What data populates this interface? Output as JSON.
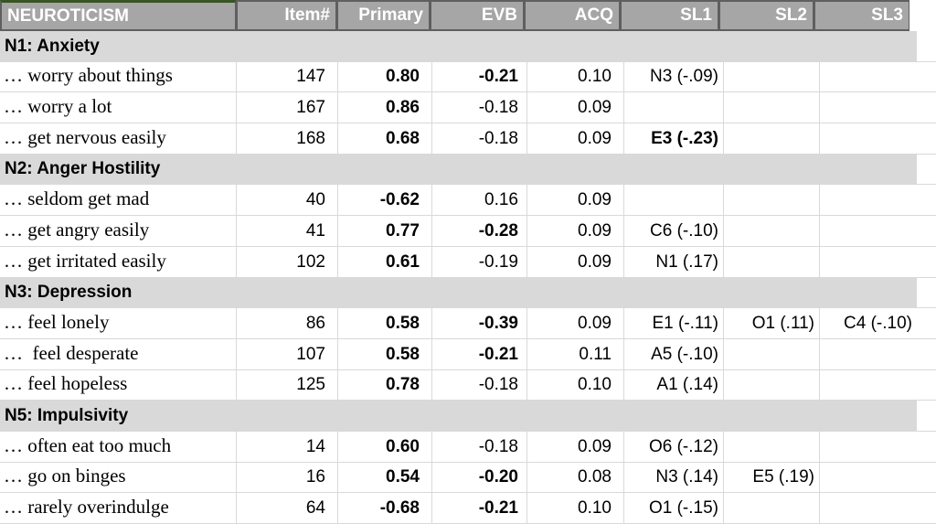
{
  "colors": {
    "header_bg": "#A6A6A6",
    "header_text": "#FFFFFF",
    "header_border": "#5F5F5F",
    "accent_green": "#375623",
    "section_bg": "#D9D9D9",
    "gridline": "#D9D9D9"
  },
  "table": {
    "headers": [
      "NEUROTICISM",
      "Item#",
      "Primary",
      "EVB",
      "ACQ",
      "SL1",
      "SL2",
      "SL3"
    ],
    "sections": [
      {
        "title": "N1: Anxiety",
        "items": [
          {
            "label": "… worry about things",
            "item": "147",
            "primary": "0.80",
            "evb": "-0.21",
            "acq": "0.10",
            "sl1": "N3 (-.09)",
            "sl2": "",
            "sl3": "",
            "evb_bold": true,
            "sl1_bold": false
          },
          {
            "label": "… worry a lot",
            "item": "167",
            "primary": "0.86",
            "evb": "-0.18",
            "acq": "0.09",
            "sl1": "",
            "sl2": "",
            "sl3": "",
            "evb_bold": false,
            "sl1_bold": false
          },
          {
            "label": "… get nervous easily",
            "item": "168",
            "primary": "0.68",
            "evb": "-0.18",
            "acq": "0.09",
            "sl1": "E3 (-.23)",
            "sl2": "",
            "sl3": "",
            "evb_bold": false,
            "sl1_bold": true
          }
        ]
      },
      {
        "title": "N2: Anger Hostility",
        "items": [
          {
            "label": "… seldom get mad",
            "item": "40",
            "primary": "-0.62",
            "evb": "0.16",
            "acq": "0.09",
            "sl1": "",
            "sl2": "",
            "sl3": "",
            "evb_bold": false,
            "sl1_bold": false
          },
          {
            "label": "… get angry easily",
            "item": "41",
            "primary": "0.77",
            "evb": "-0.28",
            "acq": "0.09",
            "sl1": "C6 (-.10)",
            "sl2": "",
            "sl3": "",
            "evb_bold": true,
            "sl1_bold": false
          },
          {
            "label": "… get irritated easily",
            "item": "102",
            "primary": "0.61",
            "evb": "-0.19",
            "acq": "0.09",
            "sl1": "N1 (.17)",
            "sl2": "",
            "sl3": "",
            "evb_bold": false,
            "sl1_bold": false
          }
        ]
      },
      {
        "title": "N3: Depression",
        "items": [
          {
            "label": "… feel lonely",
            "item": "86",
            "primary": "0.58",
            "evb": "-0.39",
            "acq": "0.09",
            "sl1": "E1 (-.11)",
            "sl2": "O1 (.11)",
            "sl3": "C4 (-.10)",
            "evb_bold": true,
            "sl1_bold": false
          },
          {
            "label": "…  feel desperate",
            "item": "107",
            "primary": "0.58",
            "evb": "-0.21",
            "acq": "0.11",
            "sl1": "A5 (-.10)",
            "sl2": "",
            "sl3": "",
            "evb_bold": true,
            "sl1_bold": false
          },
          {
            "label": "… feel hopeless",
            "item": "125",
            "primary": "0.78",
            "evb": "-0.18",
            "acq": "0.10",
            "sl1": "A1 (.14)",
            "sl2": "",
            "sl3": "",
            "evb_bold": false,
            "sl1_bold": false
          }
        ]
      },
      {
        "title": "N5: Impulsivity",
        "items": [
          {
            "label": "… often eat too much",
            "item": "14",
            "primary": "0.60",
            "evb": "-0.18",
            "acq": "0.09",
            "sl1": "O6 (-.12)",
            "sl2": "",
            "sl3": "",
            "evb_bold": false,
            "sl1_bold": false
          },
          {
            "label": "… go on binges",
            "item": "16",
            "primary": "0.54",
            "evb": "-0.20",
            "acq": "0.08",
            "sl1": "N3 (.14)",
            "sl2": "E5 (.19)",
            "sl3": "",
            "evb_bold": true,
            "sl1_bold": false
          },
          {
            "label": "… rarely overindulge",
            "item": "64",
            "primary": "-0.68",
            "evb": "-0.21",
            "acq": "0.10",
            "sl1": "O1 (-.15)",
            "sl2": "",
            "sl3": "",
            "evb_bold": true,
            "sl1_bold": false
          }
        ]
      }
    ]
  }
}
